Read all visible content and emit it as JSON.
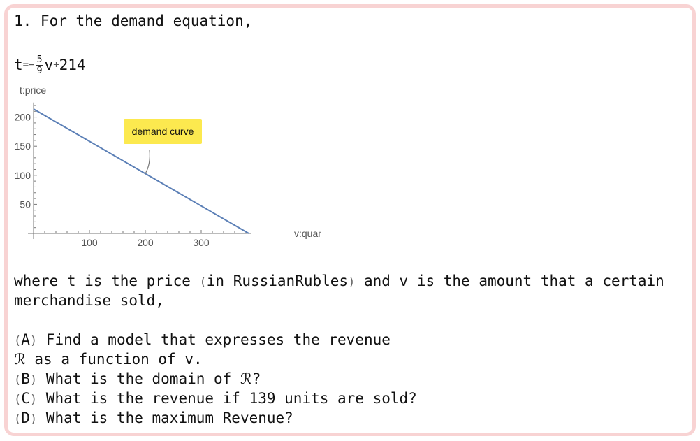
{
  "problem": {
    "heading": "1. For the demand equation,",
    "equation": {
      "lhs": "t",
      "equals": "=",
      "minus": "−",
      "numerator": "5",
      "denominator": "9",
      "var": "v",
      "plus": "+",
      "constant": "214"
    },
    "where_line1_a": "where t is the price ",
    "where_paren_open": "(",
    "where_unit": "in RussianRubles",
    "where_paren_close": ")",
    "where_line1_b": " and v is the amount that a certain",
    "where_line2": "merchandise sold,",
    "parts": [
      {
        "label": "A",
        "text": " Find a model that expresses the revenue"
      },
      {
        "label": "",
        "text": "ℛ as a function of v."
      },
      {
        "label": "B",
        "text": " What is the domain of ℛ?"
      },
      {
        "label": "C",
        "text": " What is the revenue if 139 units are sold?"
      },
      {
        "label": "D",
        "text": " What is the maximum Revenue?"
      }
    ]
  },
  "chart_data": {
    "type": "line",
    "xlabel": "v:quantity",
    "ylabel": "t:price",
    "xlim": [
      0,
      390
    ],
    "ylim": [
      0,
      225
    ],
    "x_ticks": [
      100,
      200,
      300
    ],
    "y_ticks": [
      50,
      100,
      150,
      200
    ],
    "series": [
      {
        "points": [
          [
            0,
            214
          ],
          [
            385.2,
            0
          ]
        ],
        "color": "#5b7fb6"
      }
    ],
    "annotation": {
      "text": "demand curve",
      "at": [
        200,
        102.9
      ],
      "color": "#fce94f"
    }
  }
}
